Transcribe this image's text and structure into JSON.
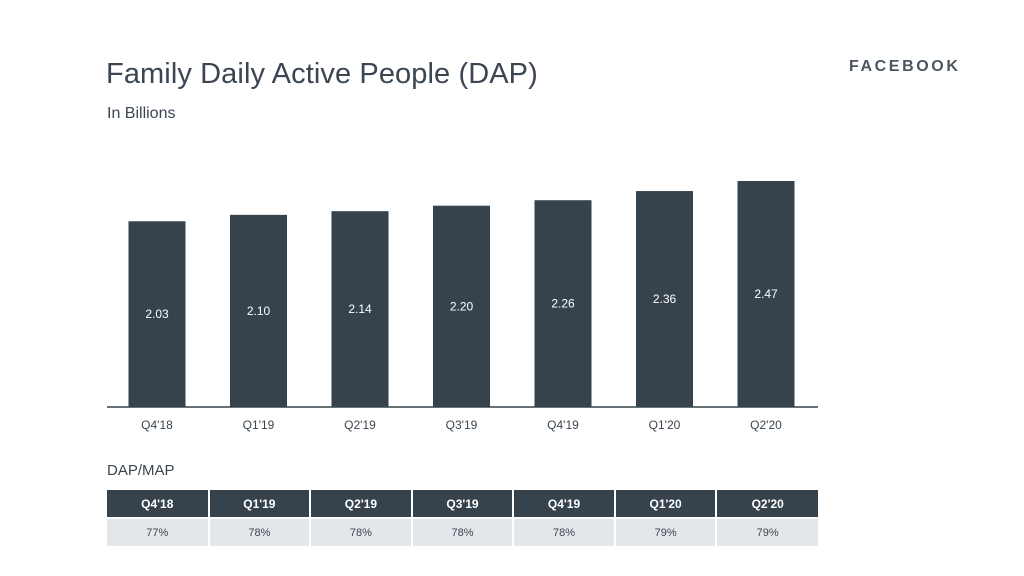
{
  "title": "Family Daily Active People (DAP)",
  "subtitle": "In Billions",
  "brand": "FACEBOOK",
  "chart_data": {
    "type": "bar",
    "title": "Family Daily Active People (DAP)",
    "subtitle": "In Billions",
    "categories": [
      "Q4'18",
      "Q1'19",
      "Q2'19",
      "Q3'19",
      "Q4'19",
      "Q1'20",
      "Q2'20"
    ],
    "values": [
      2.03,
      2.1,
      2.14,
      2.2,
      2.26,
      2.36,
      2.47
    ],
    "value_labels": [
      "2.03",
      "2.10",
      "2.14",
      "2.20",
      "2.26",
      "2.36",
      "2.47"
    ],
    "grid": false,
    "bar_color": "#36434d"
  },
  "table": {
    "label": "DAP/MAP",
    "headers": [
      "Q4'18",
      "Q1'19",
      "Q2'19",
      "Q3'19",
      "Q4'19",
      "Q1'20",
      "Q2'20"
    ],
    "values": [
      "77%",
      "78%",
      "78%",
      "78%",
      "78%",
      "79%",
      "79%"
    ],
    "header_color": "#36434d",
    "row_color": "#e4e7ea"
  }
}
